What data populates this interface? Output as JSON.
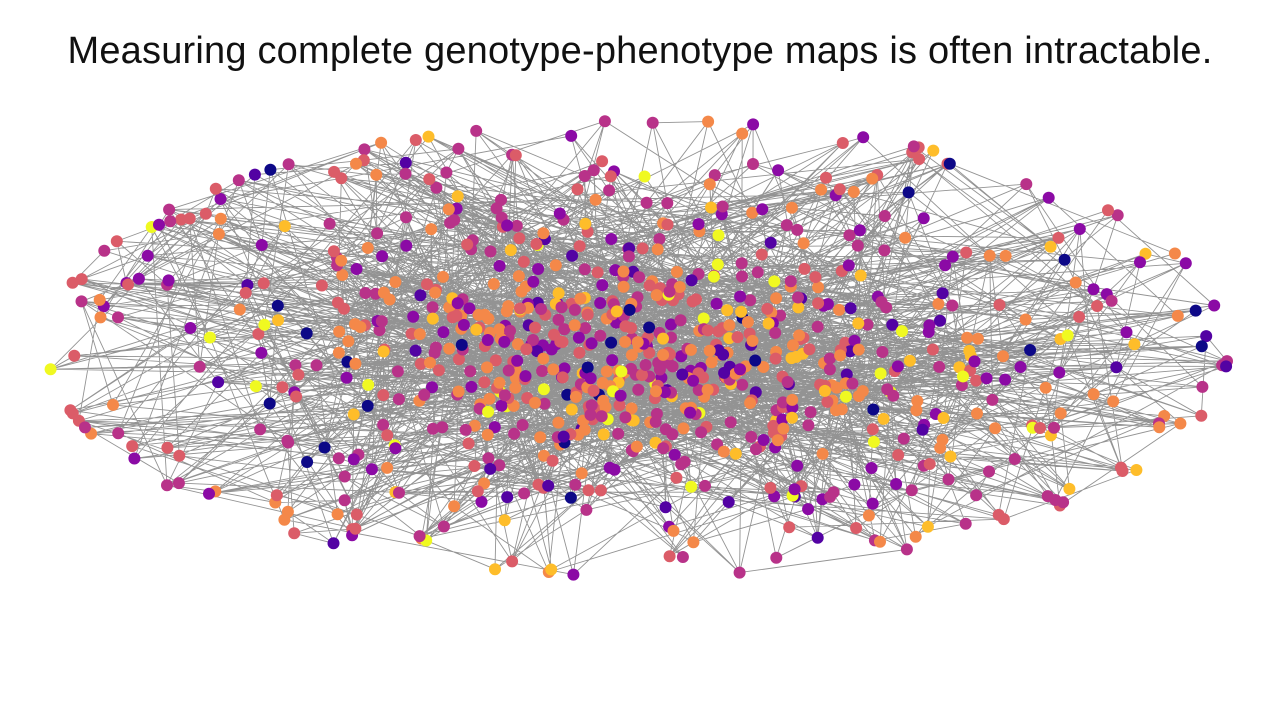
{
  "slide": {
    "title": "Measuring complete genotype-phenotype maps is often intractable."
  },
  "network": {
    "node_count": 900,
    "edge_color": "#808080",
    "node_palette": [
      "#0d0887",
      "#5302a3",
      "#8b0aa5",
      "#b83289",
      "#db5c68",
      "#f48849",
      "#febd2a",
      "#f0f921"
    ],
    "node_color_weights": [
      0.03,
      0.06,
      0.13,
      0.24,
      0.22,
      0.22,
      0.06,
      0.04
    ]
  }
}
